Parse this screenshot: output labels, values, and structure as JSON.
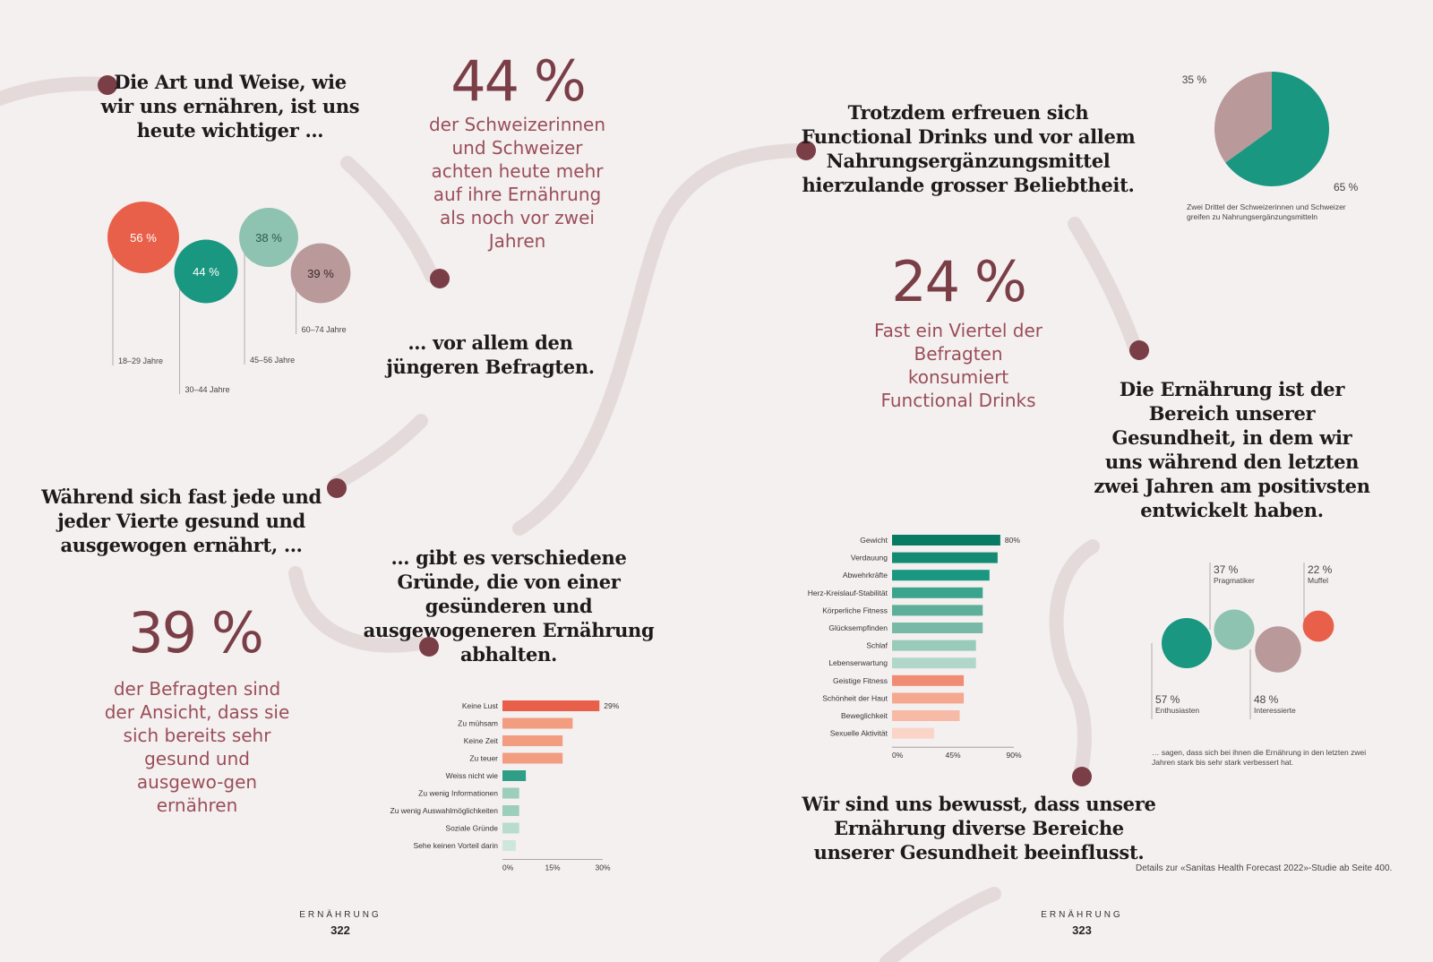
{
  "headings": {
    "h1": "Die Art und Weise, wie wir uns ernähren, ist uns heute wichtiger …",
    "h2": "… vor allem den jüngeren Befragten.",
    "h3": "Während sich fast jede und jeder Vierte gesund und ausgewogen ernährt, …",
    "h4": "… gibt es verschiedene Gründe, die von einer gesünderen und ausgewogeneren Ernährung abhalten.",
    "h5": "Trotzdem erfreuen sich Functional Drinks und vor allem Nahrungsergänzungsmittel hierzulande grosser Beliebtheit.",
    "h6": "Die Ernährung ist der Bereich unserer Gesundheit, in dem wir uns während den letzten zwei Jahren am positivsten entwickelt haben.",
    "h7": "Wir sind uns bewusst, dass unsere Ernährung diverse Bereiche unserer Gesundheit beeinflusst."
  },
  "stats": {
    "s1_num": "44 %",
    "s1_text": "der Schweizerinnen und Schweizer achten heute mehr auf ihre Ernährung als noch vor zwei Jahren",
    "s2_num": "39 %",
    "s2_text": "der Befragten sind der Ansicht, dass sie sich bereits sehr gesund und ausgewo-gen ernähren",
    "s3_num": "24 %",
    "s3_text": "Fast ein Viertel der Befragten konsumiert Functional Drinks"
  },
  "pie_caption": "Zwei Drittel der Schweizerinnen und Schweizer greifen zu Nahrungsergänzungsmitteln",
  "bubble2_caption": "… sagen, dass sich bei ihnen die Ernährung in den letzten zwei Jahren stark bis sehr stark verbessert hat.",
  "details": "Details zur «Sanitas Health Forecast 2022»-Studie ab Seite 400.",
  "footer": {
    "left_label": "ERNÄHRUNG",
    "left_page": "322",
    "right_label": "ERNÄHRUNG",
    "right_page": "323"
  },
  "chart_data": [
    {
      "type": "bubble",
      "id": "age-groups",
      "categories": [
        "18–29 Jahre",
        "30–44 Jahre",
        "45–56 Jahre",
        "60–74 Jahre"
      ],
      "values": [
        56,
        44,
        38,
        39
      ],
      "labels": [
        "56 %",
        "44 %",
        "38 %",
        "39 %"
      ],
      "colors": [
        "#e8604a",
        "#1a9780",
        "#8ec2b1",
        "#b9999a"
      ]
    },
    {
      "type": "bar",
      "id": "reasons",
      "orientation": "horizontal",
      "categories": [
        "Keine Lust",
        "Zu mühsam",
        "Keine Zeit",
        "Zu teuer",
        "Weiss nicht wie",
        "Zu wenig Informationen",
        "Zu wenig Auswahlmöglichkeiten",
        "Soziale Gründe",
        "Sehe keinen Vorteil darin"
      ],
      "values": [
        29,
        21,
        18,
        18,
        7,
        5,
        5,
        5,
        4
      ],
      "value_label_first": "29%",
      "colors": [
        "#e8604a",
        "#f29c80",
        "#f29c80",
        "#f29c80",
        "#2f9e86",
        "#9ccdbd",
        "#9ccdbd",
        "#b8dccf",
        "#cfe6dd"
      ],
      "xlim": [
        0,
        30
      ],
      "xticks": [
        "0%",
        "15%",
        "30%"
      ]
    },
    {
      "type": "pie",
      "id": "supplements",
      "values": [
        65,
        35
      ],
      "labels": [
        "65 %",
        "35 %"
      ],
      "colors": [
        "#1a9780",
        "#b9999a"
      ]
    },
    {
      "type": "bar",
      "id": "health-areas",
      "orientation": "horizontal",
      "categories": [
        "Gewicht",
        "Verdauung",
        "Abwehrkräfte",
        "Herz-Kreislauf-Stabilität",
        "Körperliche Fitness",
        "Glücksempfinden",
        "Schlaf",
        "Lebenserwartung",
        "Geistige Fitness",
        "Schönheit der Haut",
        "Beweglichkeit",
        "Sexuelle Aktivität"
      ],
      "values": [
        80,
        78,
        72,
        67,
        67,
        67,
        62,
        62,
        53,
        53,
        50,
        31
      ],
      "value_label_first": "80%",
      "colors": [
        "#077a63",
        "#148a72",
        "#1a9780",
        "#3aa48c",
        "#5daf99",
        "#77b9a6",
        "#99cbbb",
        "#b0d7c9",
        "#f08c73",
        "#f5a890",
        "#f7baa6",
        "#fad4c7"
      ],
      "xlim": [
        0,
        90
      ],
      "xticks": [
        "0%",
        "45%",
        "90%"
      ]
    },
    {
      "type": "bubble",
      "id": "types",
      "categories": [
        "Enthusiasten",
        "Pragmatiker",
        "Interessierte",
        "Muffel"
      ],
      "values": [
        57,
        37,
        48,
        22
      ],
      "labels": [
        "57 %",
        "37 %",
        "48 %",
        "22 %"
      ],
      "colors": [
        "#1a9780",
        "#8ec2b1",
        "#b9999a",
        "#e8604a"
      ]
    }
  ]
}
